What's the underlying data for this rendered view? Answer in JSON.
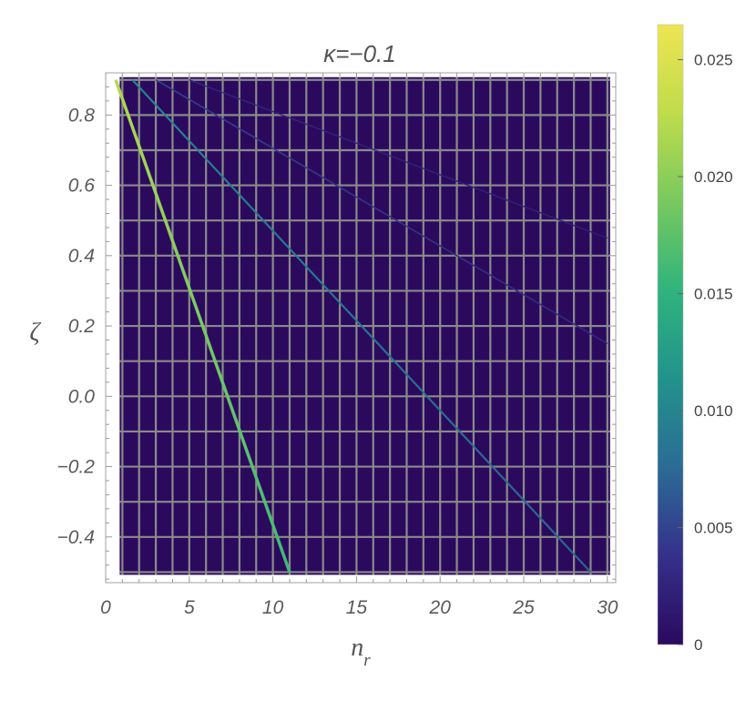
{
  "chart_data": {
    "type": "heatmap",
    "title": "κ=−0.1",
    "xlabel": "n_r",
    "ylabel": "ζ",
    "xlim": [
      0,
      30.5
    ],
    "ylim": [
      -0.53,
      0.92
    ],
    "grid_x_step": 1,
    "grid_y_step": 0.1,
    "grid_x_range": [
      1,
      30
    ],
    "grid_y_range": [
      -0.5,
      0.9
    ],
    "x_ticks": [
      0,
      5,
      10,
      15,
      20,
      25,
      30
    ],
    "x_tick_labels": [
      "0",
      "5",
      "10",
      "15",
      "20",
      "25",
      "30"
    ],
    "y_ticks": [
      -0.4,
      -0.2,
      0.0,
      0.2,
      0.4,
      0.6,
      0.8
    ],
    "y_tick_labels": [
      "−0.4",
      "−0.2",
      "0.0",
      "0.2",
      "0.4",
      "0.6",
      "0.8"
    ],
    "background_value": 0,
    "series": [
      {
        "x": [
          0.6,
          11.0
        ],
        "y": [
          0.9,
          -0.5
        ],
        "value_start": 0.022,
        "value_end": 0.016
      },
      {
        "x": [
          1.6,
          29.0
        ],
        "y": [
          0.9,
          -0.5
        ],
        "value_start": 0.01,
        "value_end": 0.007
      },
      {
        "x": [
          3.0,
          30.0
        ],
        "y": [
          0.9,
          0.15
        ],
        "value_start": 0.005,
        "value_end": 0.003
      },
      {
        "x": [
          5.0,
          30.0
        ],
        "y": [
          0.9,
          0.45
        ],
        "value_start": 0.003,
        "value_end": 0.002
      }
    ],
    "colorbar": {
      "min": 0,
      "max": 0.0265,
      "ticks": [
        0,
        0.005,
        0.01,
        0.015,
        0.02,
        0.025
      ],
      "tick_labels": [
        "0",
        "0.005",
        "0.010",
        "0.015",
        "0.020",
        "0.025"
      ],
      "colors": [
        "#2b0a5e",
        "#352f8a",
        "#2b6d95",
        "#22938c",
        "#2fb37e",
        "#76c85f",
        "#c1dc4b",
        "#ede552"
      ]
    },
    "colors": {
      "background": "#2b0a5e",
      "grid": "#8a8a8a",
      "frame": "#a0a0a0"
    }
  }
}
